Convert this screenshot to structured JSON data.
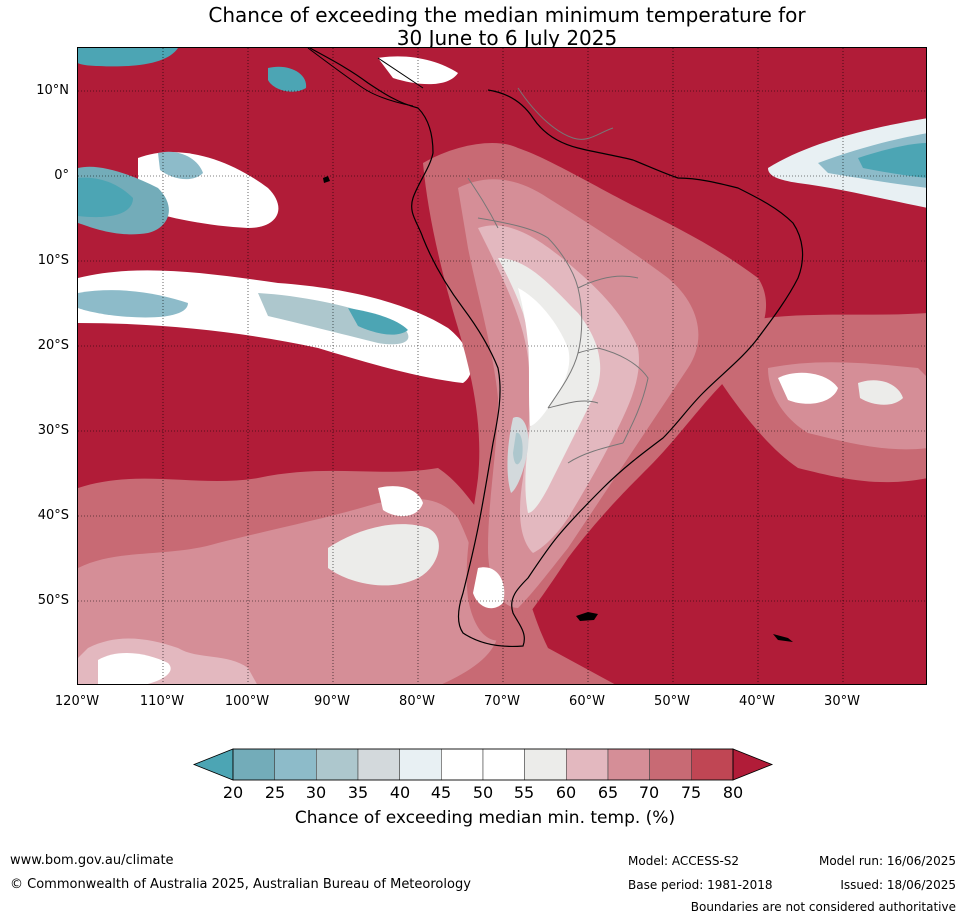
{
  "title": {
    "line1": "Chance of exceeding the median minimum temperature for",
    "line2": "30 June to 6 July 2025"
  },
  "map": {
    "lat_labels": [
      "10°N",
      "0°",
      "10°S",
      "20°S",
      "30°S",
      "40°S",
      "50°S"
    ],
    "lon_labels": [
      "120°W",
      "110°W",
      "100°W",
      "90°W",
      "80°W",
      "70°W",
      "60°W",
      "50°W",
      "40°W",
      "30°W"
    ],
    "gridlines": "dotted",
    "dominant_fill": "#b11c38"
  },
  "colorbar": {
    "title": "Chance of exceeding median min. temp. (%)",
    "tick_labels": [
      "20",
      "25",
      "30",
      "35",
      "40",
      "45",
      "50",
      "55",
      "60",
      "65",
      "70",
      "75",
      "80"
    ],
    "colors": [
      "#4ca5b4",
      "#73acb9",
      "#8dbbc9",
      "#adc7cd",
      "#d3d9dc",
      "#e8f0f3",
      "#ffffff",
      "#ffffff",
      "#ececea",
      "#e3b8bf",
      "#d58e97",
      "#c86a74",
      "#c04654",
      "#b11c38"
    ],
    "extend": "both"
  },
  "footer": {
    "website": "www.bom.gov.au/climate",
    "copyright": "© Commonwealth of Australia 2025, Australian Bureau of Meteorology",
    "model": "Model: ACCESS-S2",
    "base_period": "Base period: 1981-2018",
    "model_run": "Model run: 16/06/2025",
    "issued": "Issued: 18/06/2025",
    "disclaimer": "Boundaries are not considered authoritative"
  }
}
